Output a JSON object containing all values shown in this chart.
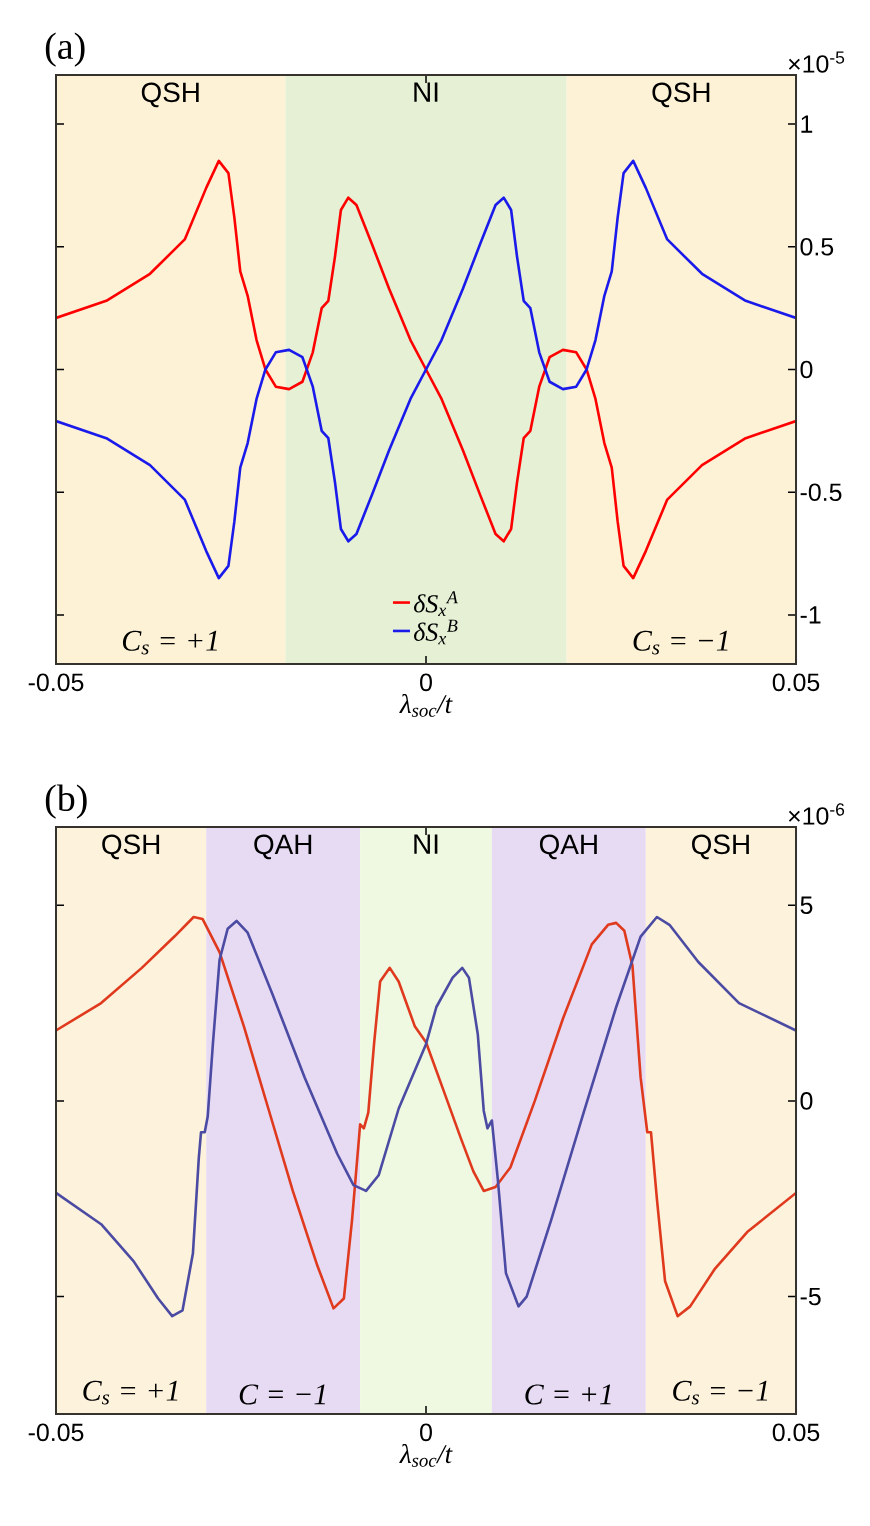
{
  "chart_data": [
    {
      "type": "line",
      "title": "(a)",
      "xlabel": "λ$_{soc}$/t",
      "xlim": [
        -0.05,
        0.05
      ],
      "xticks": [
        -0.05,
        0,
        0.05
      ],
      "ylim": [
        -1.2,
        1.2
      ],
      "yticks": [
        -1,
        -0.5,
        0,
        0.5,
        1
      ],
      "legend": "bottom",
      "annotations": [
        "×10$^{-5}$",
        "C$_{s}$ = +1",
        "C$_{s}$ = −1"
      ],
      "bands": [
        {
          "axis": "x",
          "from": -0.05,
          "to": -0.019,
          "label": "QSH",
          "color": "#fdf2d6"
        },
        {
          "axis": "x",
          "from": -0.019,
          "to": 0.019,
          "label": "NI",
          "color": "#e5f0d5"
        },
        {
          "axis": "x",
          "from": 0.019,
          "to": 0.05,
          "label": "QSH",
          "color": "#fdf2d6"
        }
      ],
      "series": [
        {
          "name": "δS$_{x}$$^{A}$",
          "color": "#ff0000",
          "x": [
            -0.05,
            -0.0432,
            -0.0373,
            -0.0326,
            -0.0297,
            -0.028,
            -0.0267,
            -0.0259,
            -0.0251,
            -0.0241,
            -0.0229,
            -0.0217,
            -0.0203,
            -0.0185,
            -0.0167,
            -0.0153,
            -0.0141,
            -0.0132,
            -0.0123,
            -0.0115,
            -0.0105,
            -0.0094,
            -0.0073,
            -0.005,
            -0.0021,
            0,
            0.0021,
            0.005,
            0.0073,
            0.0094,
            0.0105,
            0.0115,
            0.0123,
            0.0132,
            0.0141,
            0.0153,
            0.0167,
            0.0185,
            0.0203,
            0.0217,
            0.0229,
            0.0241,
            0.0251,
            0.0259,
            0.0267,
            0.028,
            0.0297,
            0.0326,
            0.0373,
            0.0432,
            0.05
          ],
          "values": [
            0.21,
            0.28,
            0.39,
            0.53,
            0.74,
            0.85,
            0.8,
            0.62,
            0.4,
            0.3,
            0.12,
            0,
            -0.07,
            -0.08,
            -0.05,
            0.07,
            0.25,
            0.28,
            0.46,
            0.65,
            0.7,
            0.67,
            0.51,
            0.33,
            0.12,
            0,
            -0.12,
            -0.33,
            -0.51,
            -0.67,
            -0.7,
            -0.65,
            -0.46,
            -0.28,
            -0.25,
            -0.07,
            0.05,
            0.08,
            0.07,
            0,
            -0.12,
            -0.3,
            -0.4,
            -0.62,
            -0.8,
            -0.85,
            -0.74,
            -0.53,
            -0.39,
            -0.28,
            -0.21
          ]
        },
        {
          "name": "δS$_{x}$$^{B}$",
          "color": "#1a1aeb",
          "x": [
            -0.05,
            -0.0432,
            -0.0373,
            -0.0326,
            -0.0297,
            -0.028,
            -0.0267,
            -0.0259,
            -0.0251,
            -0.0241,
            -0.0229,
            -0.0217,
            -0.0203,
            -0.0185,
            -0.0167,
            -0.0153,
            -0.0141,
            -0.0132,
            -0.0123,
            -0.0115,
            -0.0105,
            -0.0094,
            -0.0073,
            -0.005,
            -0.0021,
            0,
            0.0021,
            0.005,
            0.0073,
            0.0094,
            0.0105,
            0.0115,
            0.0123,
            0.0132,
            0.0141,
            0.0153,
            0.0167,
            0.0185,
            0.0203,
            0.0217,
            0.0229,
            0.0241,
            0.0251,
            0.0259,
            0.0267,
            0.028,
            0.0297,
            0.0326,
            0.0373,
            0.0432,
            0.05
          ],
          "values": [
            -0.21,
            -0.28,
            -0.39,
            -0.53,
            -0.74,
            -0.85,
            -0.8,
            -0.62,
            -0.4,
            -0.3,
            -0.12,
            0,
            0.07,
            0.08,
            0.05,
            -0.07,
            -0.25,
            -0.28,
            -0.46,
            -0.65,
            -0.7,
            -0.67,
            -0.51,
            -0.33,
            -0.12,
            0,
            0.12,
            0.33,
            0.51,
            0.67,
            0.7,
            0.65,
            0.46,
            0.28,
            0.25,
            0.07,
            -0.05,
            -0.08,
            -0.07,
            0,
            0.12,
            0.3,
            0.4,
            0.62,
            0.8,
            0.85,
            0.74,
            0.53,
            0.39,
            0.28,
            0.21
          ]
        }
      ]
    },
    {
      "type": "line",
      "title": "(b)",
      "xlabel": "λ$_{soc}$/t",
      "xlim": [
        -0.05,
        0.05
      ],
      "xticks": [
        -0.05,
        0,
        0.05
      ],
      "ylim": [
        -8,
        7
      ],
      "yticks": [
        -5,
        0,
        5
      ],
      "annotations": [
        "×10$^{-6}$",
        "C$_{s}$ = +1",
        "C = −1",
        "C = +1",
        "C$_{s}$ = −1"
      ],
      "bands": [
        {
          "axis": "x",
          "from": -0.05,
          "to": -0.0297,
          "label": "QSH",
          "color": "#fdf2dc"
        },
        {
          "axis": "x",
          "from": -0.0297,
          "to": -0.0089,
          "label": "QAH",
          "color": "#e7daf3"
        },
        {
          "axis": "x",
          "from": -0.0089,
          "to": 0.0089,
          "label": "NI",
          "color": "#eff8e1"
        },
        {
          "axis": "x",
          "from": 0.0089,
          "to": 0.0297,
          "label": "QAH",
          "color": "#e7daf3"
        },
        {
          "axis": "x",
          "from": 0.0297,
          "to": 0.05,
          "label": "QSH",
          "color": "#fdf2dc"
        }
      ],
      "series": [
        {
          "color": "#e03a1e",
          "x": [
            -0.05,
            -0.0439,
            -0.0384,
            -0.034,
            -0.0314,
            -0.0302,
            -0.0279,
            -0.0246,
            -0.0213,
            -0.018,
            -0.0147,
            -0.0125,
            -0.0111,
            -0.01,
            -0.0089,
            -0.0084,
            -0.0078,
            -0.007,
            -0.0062,
            -0.0049,
            -0.0037,
            -0.0015,
            0,
            0.0025,
            0.0047,
            0.0064,
            0.0078,
            0.0094,
            0.0114,
            0.0147,
            0.0185,
            0.0224,
            0.0246,
            0.0257,
            0.0268,
            0.0279,
            0.029,
            0.0299,
            0.0304,
            0.0312,
            0.0323,
            0.034,
            0.0357,
            0.039,
            0.0434,
            0.05
          ],
          "values": [
            1.8,
            2.5,
            3.4,
            4.2,
            4.7,
            4.65,
            3.8,
            1.9,
            -0.2,
            -2.3,
            -4.2,
            -5.3,
            -5.05,
            -3.05,
            -0.6,
            -0.7,
            -0.3,
            1.5,
            3.05,
            3.4,
            3.05,
            1.9,
            1.5,
            0.2,
            -0.95,
            -1.8,
            -2.3,
            -2.2,
            -1.7,
            0,
            2.1,
            4,
            4.5,
            4.55,
            4.35,
            3.45,
            0.6,
            -0.8,
            -0.8,
            -2.5,
            -4.6,
            -5.5,
            -5.25,
            -4.3,
            -3.35,
            -2.35
          ]
        },
        {
          "color": "#4b4ba3",
          "x": [
            -0.05,
            -0.0439,
            -0.0395,
            -0.0362,
            -0.0343,
            -0.0329,
            -0.0315,
            -0.0307,
            -0.0304,
            -0.0299,
            -0.0295,
            -0.0288,
            -0.0279,
            -0.0268,
            -0.0256,
            -0.0241,
            -0.0208,
            -0.0164,
            -0.012,
            -0.0098,
            -0.0081,
            -0.0064,
            -0.0037,
            0,
            0.0014,
            0.0036,
            0.0049,
            0.0058,
            0.007,
            0.0078,
            0.0083,
            0.0089,
            0.0097,
            0.0108,
            0.0125,
            0.0136,
            0.0169,
            0.0213,
            0.0257,
            0.029,
            0.0312,
            0.0329,
            0.0368,
            0.0423,
            0.05
          ],
          "values": [
            -2.35,
            -3.15,
            -4.1,
            -5.05,
            -5.5,
            -5.35,
            -3.9,
            -1.45,
            -0.8,
            -0.8,
            -0.4,
            1.45,
            3.6,
            4.4,
            4.6,
            4.3,
            2.75,
            0.6,
            -1.35,
            -2.15,
            -2.3,
            -1.9,
            -0.2,
            1.45,
            2.4,
            3.15,
            3.4,
            3.15,
            1.7,
            -0.25,
            -0.7,
            -0.5,
            -2,
            -4.4,
            -5.25,
            -5,
            -3.05,
            -0.3,
            2.4,
            4.2,
            4.7,
            4.5,
            3.55,
            2.5,
            1.8
          ]
        }
      ]
    }
  ]
}
